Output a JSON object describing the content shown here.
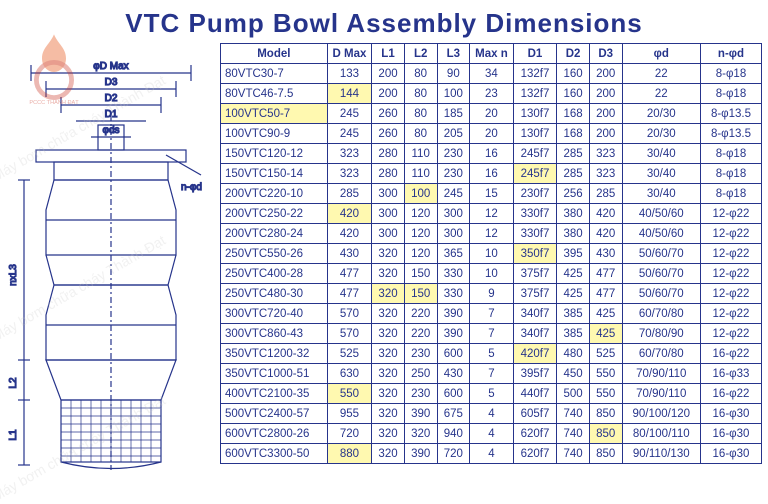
{
  "title": "VTC Pump Bowl Assembly Dimensions",
  "watermark_text": "Máy bơm chữa cháy Thành Đạt",
  "logo_text": "PCCC THÀNH ĐẠT",
  "diagram_labels": {
    "dmax": "φD Max",
    "d3": "D3",
    "d2": "D2",
    "d1": "D1",
    "ds": "φds",
    "nphid": "n-φd",
    "nxl3": "nxL3",
    "l2": "L2",
    "l1": "L1"
  },
  "table": {
    "headers": [
      "Model",
      "D Max",
      "L1",
      "L2",
      "L3",
      "Max n",
      "D1",
      "D2",
      "D3",
      "φd",
      "n-φd"
    ],
    "rows": [
      {
        "c": [
          "80VTC30-7",
          "133",
          "200",
          "80",
          "90",
          "34",
          "132f7",
          "160",
          "200",
          "22",
          "8-φ18"
        ],
        "hl": []
      },
      {
        "c": [
          "80VTC46-7.5",
          "144",
          "200",
          "80",
          "100",
          "23",
          "132f7",
          "160",
          "200",
          "22",
          "8-φ18"
        ],
        "hl": [
          1
        ]
      },
      {
        "c": [
          "100VTC50-7",
          "245",
          "260",
          "80",
          "185",
          "20",
          "130f7",
          "168",
          "200",
          "20/30",
          "8-φ13.5"
        ],
        "hl": [
          0
        ]
      },
      {
        "c": [
          "100VTC90-9",
          "245",
          "260",
          "80",
          "205",
          "20",
          "130f7",
          "168",
          "200",
          "20/30",
          "8-φ13.5"
        ],
        "hl": []
      },
      {
        "c": [
          "150VTC120-12",
          "323",
          "280",
          "110",
          "230",
          "16",
          "245f7",
          "285",
          "323",
          "30/40",
          "8-φ18"
        ],
        "hl": []
      },
      {
        "c": [
          "150VTC150-14",
          "323",
          "280",
          "110",
          "230",
          "16",
          "245f7",
          "285",
          "323",
          "30/40",
          "8-φ18"
        ],
        "hl": [
          6
        ]
      },
      {
        "c": [
          "200VTC220-10",
          "285",
          "300",
          "100",
          "245",
          "15",
          "230f7",
          "256",
          "285",
          "30/40",
          "8-φ18"
        ],
        "hl": [
          3
        ]
      },
      {
        "c": [
          "200VTC250-22",
          "420",
          "300",
          "120",
          "300",
          "12",
          "330f7",
          "380",
          "420",
          "40/50/60",
          "12-φ22"
        ],
        "hl": [
          1
        ]
      },
      {
        "c": [
          "200VTC280-24",
          "420",
          "300",
          "120",
          "300",
          "12",
          "330f7",
          "380",
          "420",
          "40/50/60",
          "12-φ22"
        ],
        "hl": []
      },
      {
        "c": [
          "250VTC550-26",
          "430",
          "320",
          "120",
          "365",
          "10",
          "350f7",
          "395",
          "430",
          "50/60/70",
          "12-φ22"
        ],
        "hl": [
          6
        ]
      },
      {
        "c": [
          "250VTC400-28",
          "477",
          "320",
          "150",
          "330",
          "10",
          "375f7",
          "425",
          "477",
          "50/60/70",
          "12-φ22"
        ],
        "hl": []
      },
      {
        "c": [
          "250VTC480-30",
          "477",
          "320",
          "150",
          "330",
          "9",
          "375f7",
          "425",
          "477",
          "50/60/70",
          "12-φ22"
        ],
        "hl": [
          2,
          3
        ]
      },
      {
        "c": [
          "300VTC720-40",
          "570",
          "320",
          "220",
          "390",
          "7",
          "340f7",
          "385",
          "425",
          "60/70/80",
          "12-φ22"
        ],
        "hl": []
      },
      {
        "c": [
          "300VTC860-43",
          "570",
          "320",
          "220",
          "390",
          "7",
          "340f7",
          "385",
          "425",
          "70/80/90",
          "12-φ22"
        ],
        "hl": [
          8
        ]
      },
      {
        "c": [
          "350VTC1200-32",
          "525",
          "320",
          "230",
          "600",
          "5",
          "420f7",
          "480",
          "525",
          "60/70/80",
          "16-φ22"
        ],
        "hl": [
          6
        ]
      },
      {
        "c": [
          "350VTC1000-51",
          "630",
          "320",
          "250",
          "430",
          "7",
          "395f7",
          "450",
          "550",
          "70/90/110",
          "16-φ33"
        ],
        "hl": []
      },
      {
        "c": [
          "400VTC2100-35",
          "550",
          "320",
          "230",
          "600",
          "5",
          "440f7",
          "500",
          "550",
          "70/90/110",
          "16-φ22"
        ],
        "hl": [
          1
        ]
      },
      {
        "c": [
          "500VTC2400-57",
          "955",
          "320",
          "390",
          "675",
          "4",
          "605f7",
          "740",
          "850",
          "90/100/120",
          "16-φ30"
        ],
        "hl": []
      },
      {
        "c": [
          "600VTC2800-26",
          "720",
          "320",
          "320",
          "940",
          "4",
          "620f7",
          "740",
          "850",
          "80/100/110",
          "16-φ30"
        ],
        "hl": [
          8
        ]
      },
      {
        "c": [
          "600VTC3300-50",
          "880",
          "320",
          "390",
          "720",
          "4",
          "620f7",
          "740",
          "850",
          "90/110/130",
          "16-φ30"
        ],
        "hl": [
          1
        ]
      }
    ],
    "col_widths": [
      "98px",
      "40px",
      "30px",
      "30px",
      "30px",
      "40px",
      "40px",
      "30px",
      "30px",
      "72px",
      "56px"
    ],
    "header_bg": "#ffffff",
    "border_color": "#26348b",
    "text_color": "#26348b",
    "highlight_color": "#fff9b0",
    "font_size": 11.5
  },
  "colors": {
    "title": "#26348b",
    "background": "#ffffff",
    "logo_flame": "#e8632a",
    "logo_gear": "#c93a2a"
  }
}
